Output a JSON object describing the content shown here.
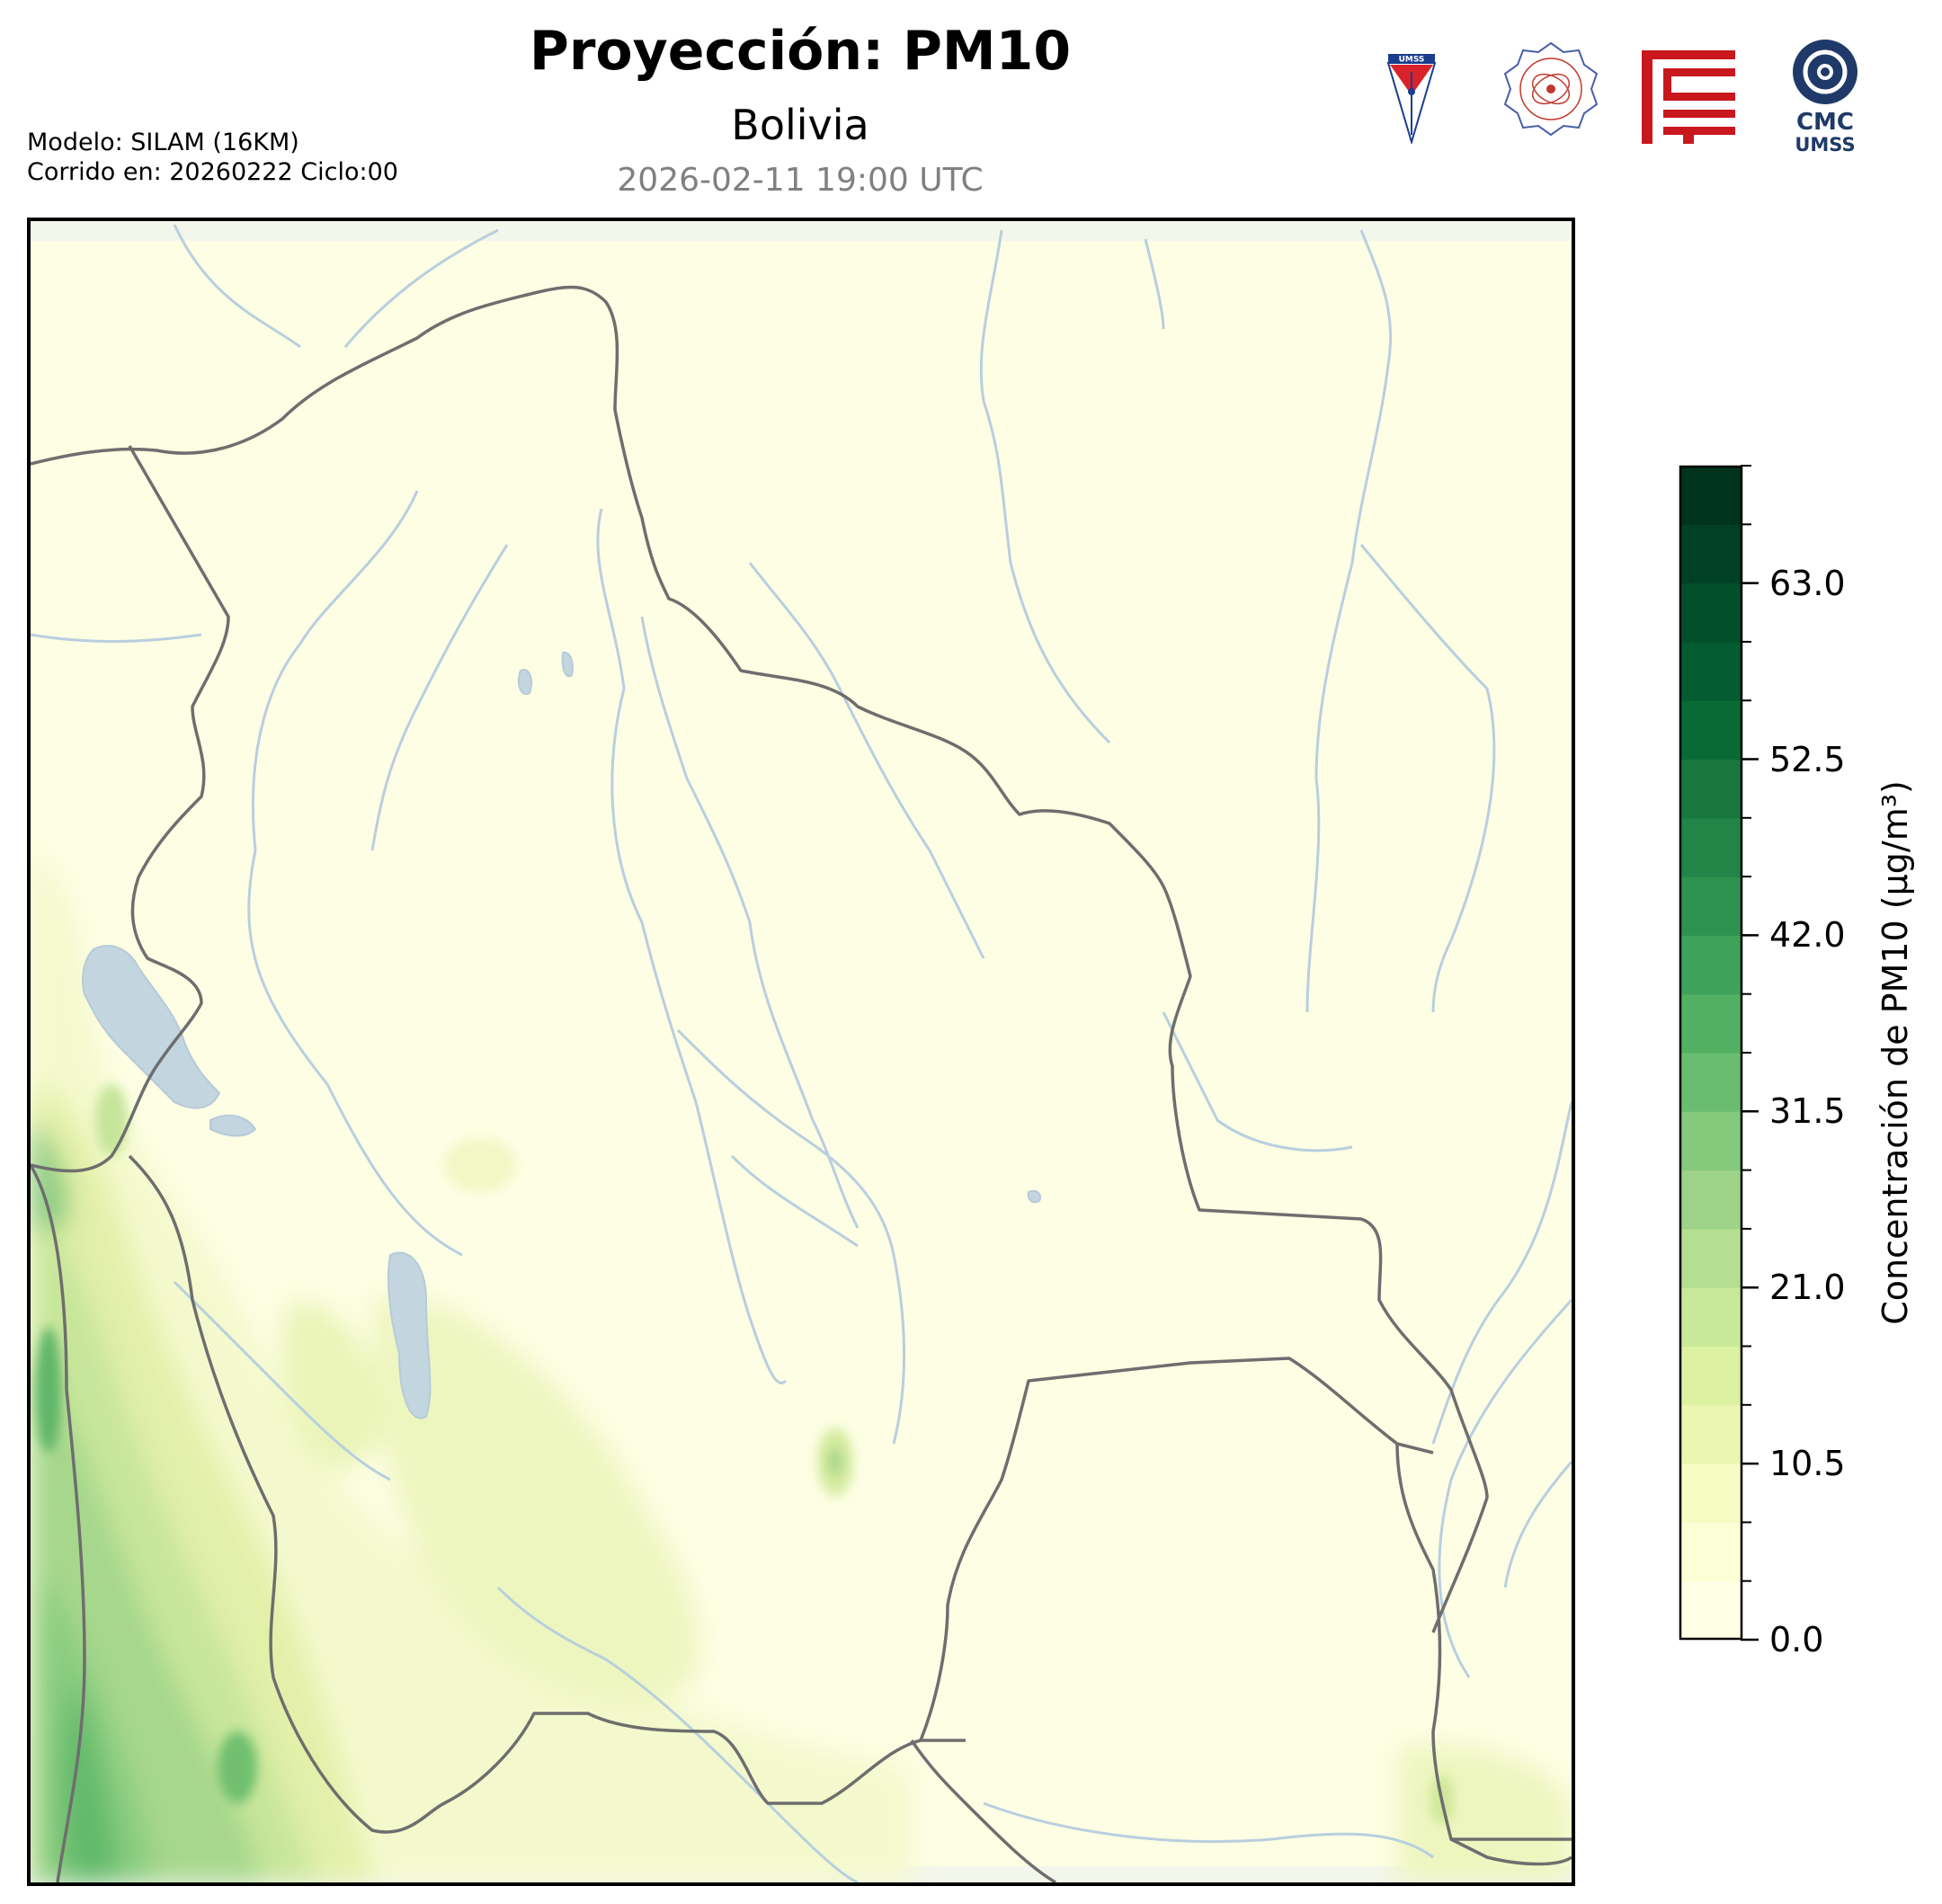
{
  "header": {
    "title": "Proyección: PM10",
    "subtitle": "Bolivia",
    "timestamp": "2026-02-11 19:00 UTC"
  },
  "model": {
    "line1": "Modelo: SILAM (16KM)",
    "line2": "Corrido en: 20260222 Ciclo:00"
  },
  "logos": {
    "umss_text": "UMSS",
    "cmc_text": "CMC",
    "cmc_sub": "UMSS",
    "items": [
      "umss-shield-logo",
      "departamento-fisica-seal-logo",
      "red-building-logo",
      "cmc-umss-logo"
    ]
  },
  "colorbar": {
    "label": "Concentración de PM10 (µg/m³)",
    "ticks": [
      "0.0",
      "10.5",
      "21.0",
      "31.5",
      "42.0",
      "52.5",
      "63.0"
    ],
    "tick_values": [
      0,
      10.5,
      21,
      31.5,
      42,
      52.5,
      63
    ],
    "vmin": 0,
    "vmax": 70,
    "levels": 20,
    "colors": [
      "#ffffe5",
      "#fcfed6",
      "#f7fcc4",
      "#ebf7b1",
      "#dcf1a1",
      "#c8e89a",
      "#b4de91",
      "#9dd388",
      "#85c97d",
      "#6abd6f",
      "#52b062",
      "#3fa25a",
      "#2e924f",
      "#228446",
      "#17773d",
      "#0a6a36",
      "#025c30",
      "#004f2a",
      "#004024",
      "#00331d"
    ]
  },
  "map": {
    "region": "Bolivia",
    "features": [
      "country-borders",
      "rivers",
      "lakes",
      "pm10-concentration-field"
    ],
    "hotspots_ugm3": [
      {
        "area": "southwest-altiplano",
        "max": 35
      },
      {
        "area": "west-andes",
        "max": 28
      },
      {
        "area": "central-south",
        "max": 18
      },
      {
        "area": "southeast-corner",
        "max": 15
      }
    ]
  },
  "theme": {
    "background_map": "#fdfee4",
    "border_color": "#6e6e6e",
    "river_color": "#b8cfde",
    "lake_color": "#c3d6e0"
  }
}
